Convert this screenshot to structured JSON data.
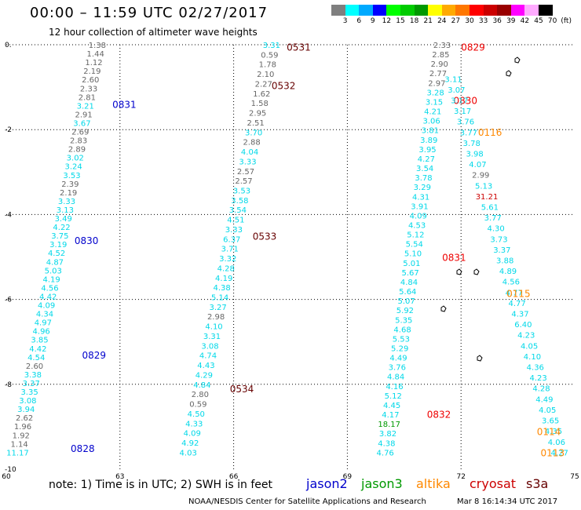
{
  "header": {
    "title": "00:00 – 11:59 UTC 02/27/2017",
    "subtitle": "12 hour collection of altimeter wave heights"
  },
  "color_scale": {
    "colors": [
      "#7f7f7f",
      "#00ffff",
      "#00aaff",
      "#0000ff",
      "#00ff00",
      "#00cc00",
      "#009900",
      "#ffff00",
      "#ffaa00",
      "#ff7700",
      "#ff0000",
      "#cc0000",
      "#990000",
      "#ff00ff",
      "#ffaaff",
      "#000000"
    ],
    "labels": [
      "3",
      "6",
      "9",
      "12",
      "15",
      "18",
      "21",
      "24",
      "27",
      "30",
      "33",
      "36",
      "39",
      "42",
      "45",
      "70",
      "(ft)"
    ]
  },
  "note": "note:  1) Time is in UTC;  2) SWH is in feet",
  "legend": [
    {
      "label": "jason2",
      "color": "#0000cc"
    },
    {
      "label": "jason3",
      "color": "#009900"
    },
    {
      "label": "altika",
      "color": "#ff8800"
    },
    {
      "label": "cryosat",
      "color": "#cc0000"
    },
    {
      "label": "s3a",
      "color": "#660000"
    }
  ],
  "credit": "NOAA/NESDIS Center for Satellite Applications and Research",
  "timestamp": "Mar  8 16:14:34 UTC 2017",
  "chart_data": {
    "type": "scatter",
    "title": "00:00 – 11:59 UTC 02/27/2017",
    "xlim": [
      60,
      75
    ],
    "ylim": [
      -10,
      0
    ],
    "xticks": [
      "60",
      "63",
      "66",
      "69",
      "72",
      "75"
    ],
    "yticks": [
      "0.",
      "-2",
      "-4",
      "-6",
      "-8",
      "-10"
    ],
    "xtick_values": [
      60,
      63,
      66,
      69,
      72,
      75
    ],
    "ytick_values": [
      0,
      -2,
      -4,
      -6,
      -8,
      -10
    ],
    "grid": true,
    "tracks": [
      {
        "name": "jason2",
        "start": [
          62.4,
          0.0
        ],
        "end": [
          60.3,
          -9.6
        ],
        "values": [
          "1.38",
          "1.44",
          "1.12",
          "2.19",
          "2.60",
          "2.33",
          "2.81",
          "3.21",
          "2.91",
          "3.67",
          "2.69",
          "2.83",
          "2.89",
          "3.02",
          "3.24",
          "3.53",
          "2.39",
          "2.19",
          "3.33",
          "3.13",
          "3.49",
          "4.22",
          "3.75",
          "3.19",
          "4.52",
          "4.87",
          "5.03",
          "4.19",
          "4.56",
          "4.42",
          "4.09",
          "4.34",
          "4.97",
          "4.96",
          "3.85",
          "4.42",
          "4.54",
          "2.60",
          "3.38",
          "3.37",
          "3.35",
          "3.08",
          "3.94",
          "2.62",
          "1.96",
          "1.92",
          "1.14",
          "11.17"
        ],
        "labels": [
          {
            "text": "0831",
            "x": 62.8,
            "y": -1.4
          },
          {
            "text": "0830",
            "x": 61.8,
            "y": -4.6
          },
          {
            "text": "0829",
            "x": 62.0,
            "y": -7.3
          },
          {
            "text": "0828",
            "x": 61.7,
            "y": -9.5
          }
        ]
      },
      {
        "name": "s3a",
        "start": [
          67.0,
          0.0
        ],
        "end": [
          64.8,
          -9.6
        ],
        "values": [
          "3.31",
          "0.59",
          "1.78",
          "2.10",
          "2.27",
          "1.62",
          "1.58",
          "2.95",
          "2.51",
          "3.70",
          "2.88",
          "4.04",
          "3.33",
          "2.57",
          "2.57",
          "3.53",
          "3.58",
          "3.54",
          "4.51",
          "3.33",
          "6.37",
          "3.71",
          "3.32",
          "4.28",
          "4.19",
          "4.38",
          "5.14",
          "3.27",
          "2.98",
          "4.10",
          "3.31",
          "3.08",
          "4.74",
          "4.43",
          "4.29",
          "4.84",
          "2.80",
          "0.59",
          "4.50",
          "4.33",
          "4.09",
          "4.92",
          "4.03"
        ],
        "labels": [
          {
            "text": "0531",
            "x": 67.4,
            "y": -0.05
          },
          {
            "text": "0532",
            "x": 67.0,
            "y": -0.95
          },
          {
            "text": "0533",
            "x": 66.5,
            "y": -4.5
          },
          {
            "text": "0534",
            "x": 65.9,
            "y": -8.1
          }
        ]
      },
      {
        "name": "cryosat",
        "start": [
          71.5,
          0.0
        ],
        "end": [
          70.0,
          -9.6
        ],
        "values": [
          "2.33",
          "2.85",
          "2.90",
          "2.77",
          "2.97",
          "3.28",
          "3.15",
          "4.21",
          "3.06",
          "3.81",
          "3.89",
          "3.95",
          "4.27",
          "3.54",
          "3.78",
          "3.29",
          "4.31",
          "3.91",
          "4.09",
          "4.53",
          "5.12",
          "5.54",
          "5.10",
          "5.01",
          "5.67",
          "4.84",
          "5.64",
          "5.07",
          "5.92",
          "5.35",
          "4.68",
          "5.53",
          "5.29",
          "4.49",
          "3.76",
          "4.84",
          "4.16",
          "5.12",
          "4.45",
          "4.17",
          "18.17",
          "3.82",
          "4.38",
          "4.76"
        ],
        "labels": [
          {
            "text": "0829",
            "x": 72.0,
            "y": -0.05
          },
          {
            "text": "0830",
            "x": 71.8,
            "y": -1.3
          },
          {
            "text": "0831",
            "x": 71.5,
            "y": -5.0
          },
          {
            "text": "0832",
            "x": 71.1,
            "y": -8.7
          }
        ]
      },
      {
        "name": "altika",
        "start": [
          71.8,
          -0.8
        ],
        "end": [
          74.6,
          -9.6
        ],
        "values": [
          "3.11",
          "3.07",
          "3.17",
          "3.17",
          "3.76",
          "3.77",
          "3.78",
          "3.98",
          "4.07",
          "2.99",
          "5.13",
          "31.21",
          "5.61",
          "3.77",
          "4.30",
          "3.73",
          "3.37",
          "3.88",
          "4.89",
          "4.56",
          "4.77",
          "4.77",
          "4.37",
          "6.40",
          "4.23",
          "4.05",
          "4.10",
          "4.36",
          "4.23",
          "4.28",
          "4.49",
          "4.05",
          "3.65",
          "4.35",
          "4.06",
          "4.27"
        ],
        "labels": [
          {
            "text": "0116",
            "x": 72.45,
            "y": -2.05
          },
          {
            "text": "0115",
            "x": 73.2,
            "y": -5.85
          },
          {
            "text": "0114",
            "x": 74.0,
            "y": -9.1
          },
          {
            "text": "0113",
            "x": 74.1,
            "y": -9.6
          }
        ]
      }
    ]
  }
}
